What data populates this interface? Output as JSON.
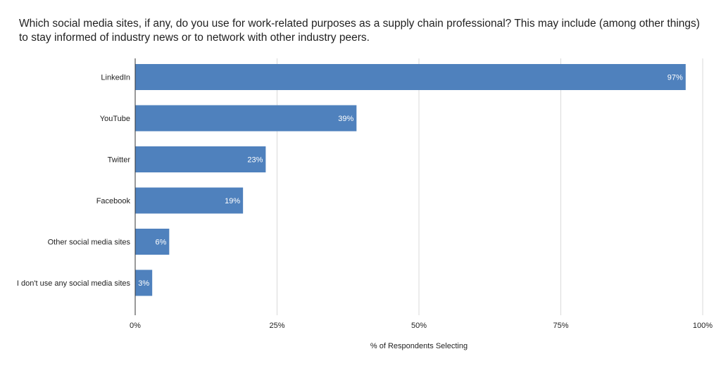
{
  "chart_data": {
    "type": "bar",
    "orientation": "horizontal",
    "title": "Which social media sites, if any, do you use for work-related purposes as a supply chain professional? This may include (among other things) to stay informed of industry news or to network with other industry peers.",
    "xlabel": "% of Respondents Selecting",
    "ylabel": "",
    "xlim": [
      0,
      100
    ],
    "x_ticks": [
      0,
      25,
      50,
      75,
      100
    ],
    "x_tick_labels": [
      "0%",
      "25%",
      "50%",
      "75%",
      "100%"
    ],
    "categories": [
      "LinkedIn",
      "YouTube",
      "Twitter",
      "Facebook",
      "Other social media sites",
      "I don't use any social media sites"
    ],
    "values": [
      97,
      39,
      23,
      19,
      6,
      3
    ],
    "data_labels": [
      "97%",
      "39%",
      "23%",
      "19%",
      "6%",
      "3%"
    ],
    "bar_color": "#4f81bd",
    "grid": true,
    "legend": "none"
  }
}
